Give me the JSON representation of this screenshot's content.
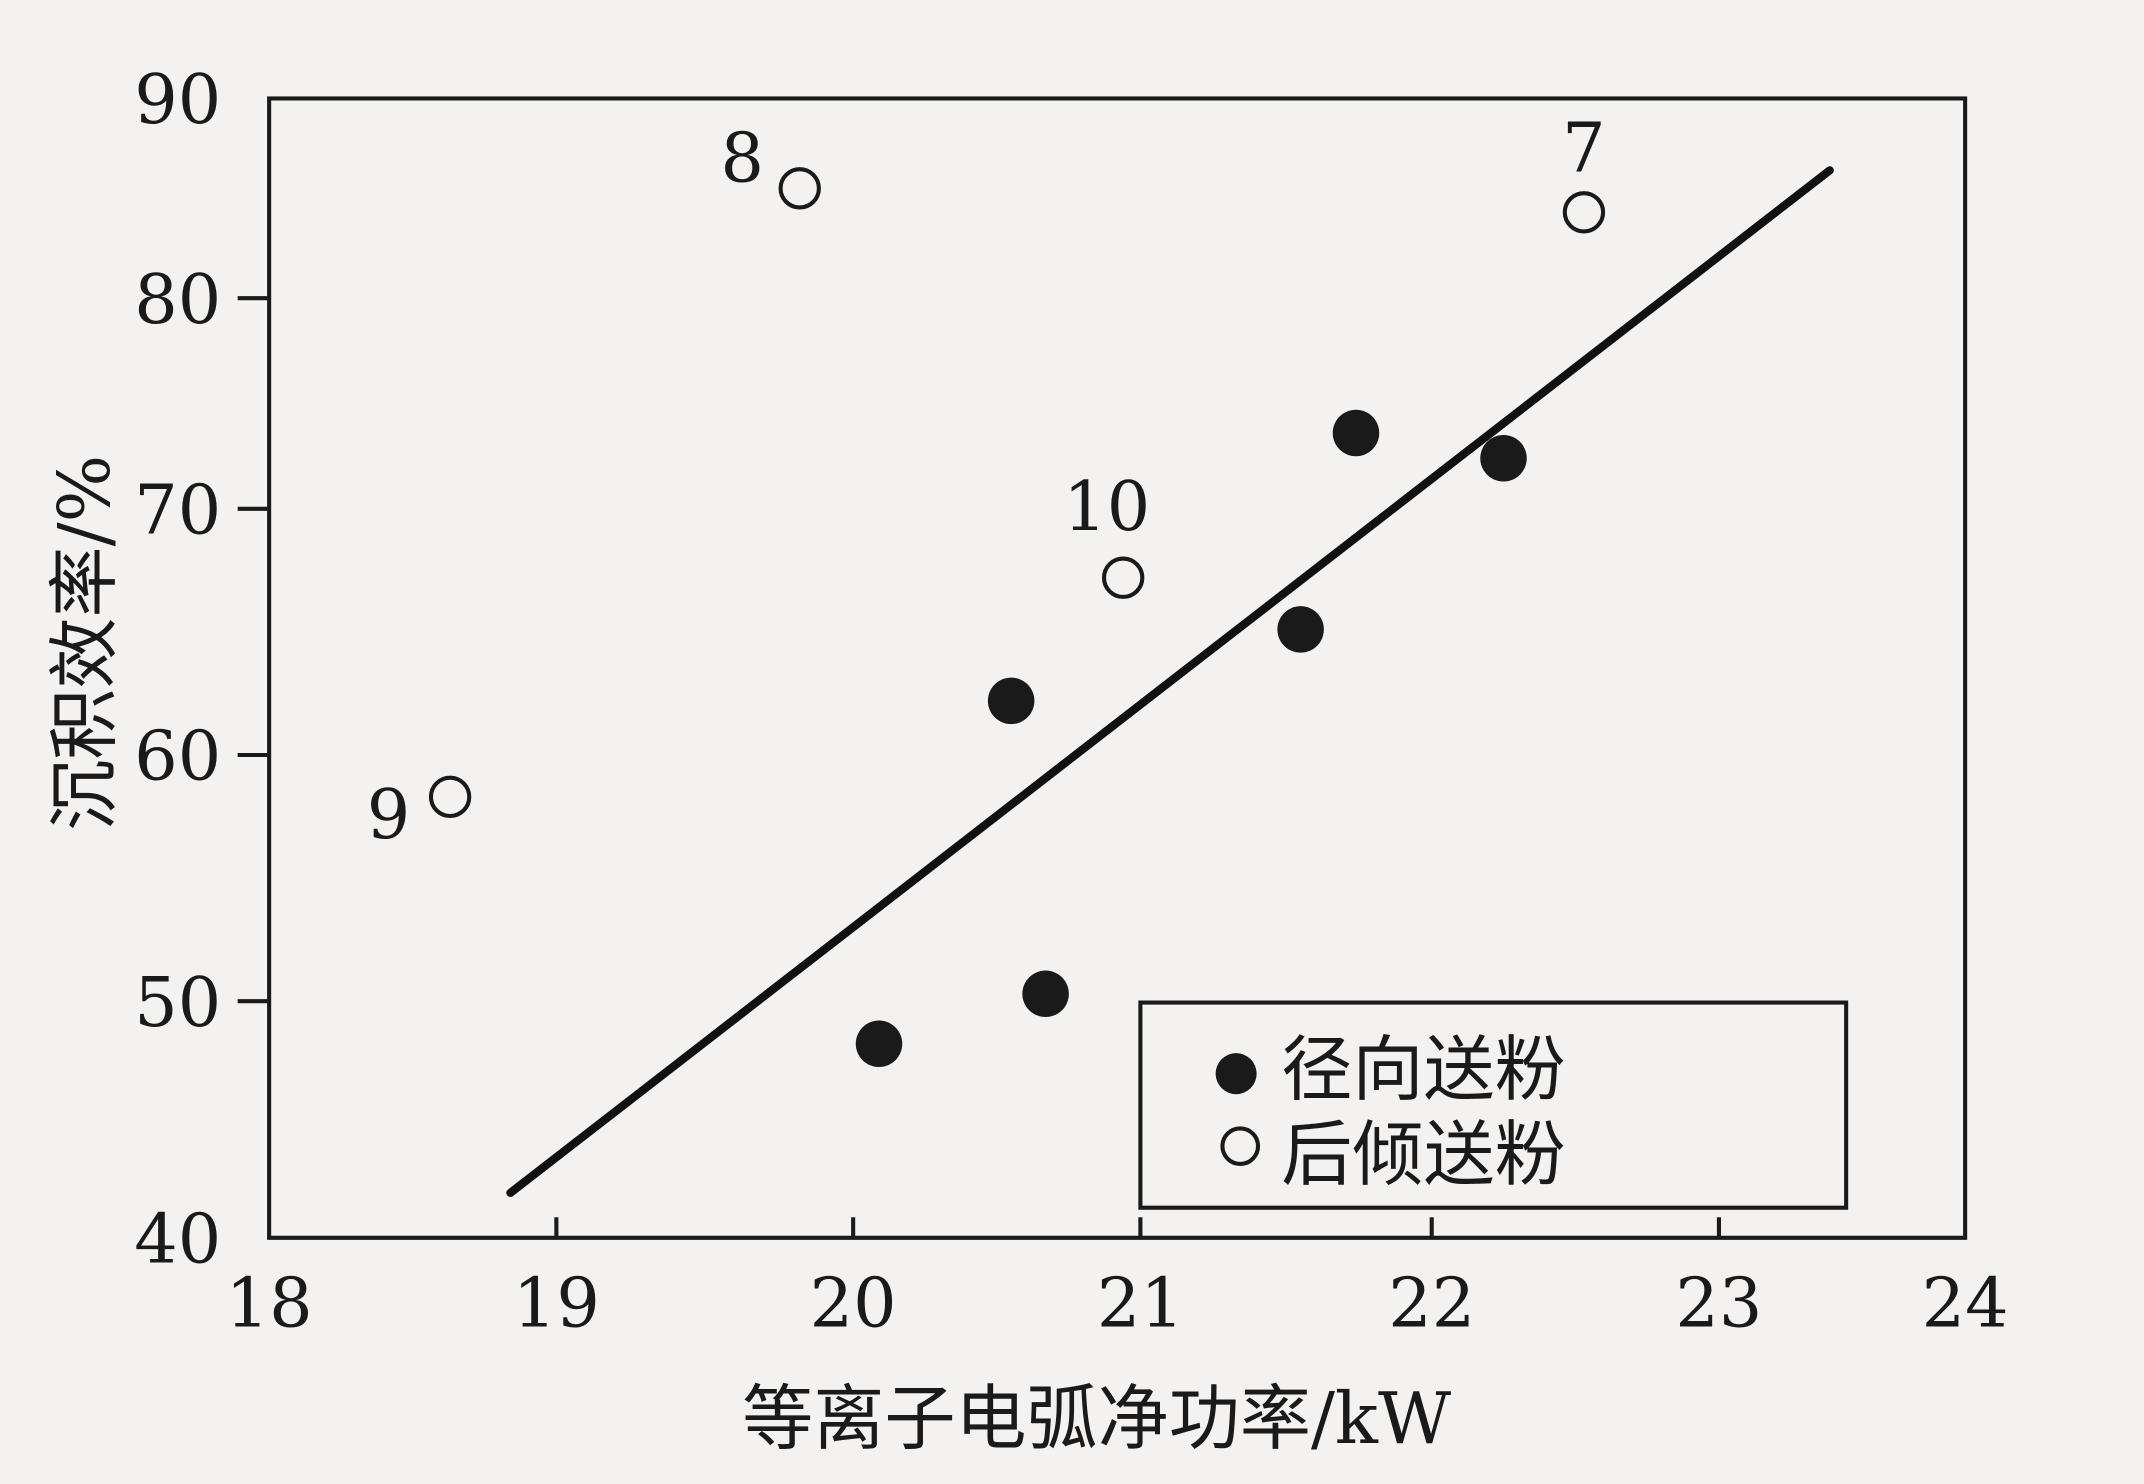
{
  "chart_data": {
    "type": "scatter",
    "xlabel": "等离子电弧净功率/kW",
    "ylabel": "沉积效率/%",
    "xlim": [
      18,
      24
    ],
    "ylim": [
      40,
      90
    ],
    "xticks": [
      "18",
      "19",
      "20",
      "21",
      "22",
      "23",
      "24"
    ],
    "yticks": [
      "40",
      "50",
      "60",
      "70",
      "80",
      "90"
    ],
    "grid": false,
    "legend_position": "bottom-right",
    "series": [
      {
        "name": "径向送粉",
        "marker": "filled-circle",
        "color": "#1a1a1a",
        "points": [
          {
            "x": 20.09,
            "y": 48.2
          },
          {
            "x": 20.67,
            "y": 50.3
          },
          {
            "x": 20.55,
            "y": 62.2
          },
          {
            "x": 21.55,
            "y": 65.1
          },
          {
            "x": 21.74,
            "y": 73.6
          },
          {
            "x": 22.25,
            "y": 72.4
          }
        ]
      },
      {
        "name": "后倾送粉",
        "marker": "open-circle",
        "color": "#1a1a1a",
        "points": [
          {
            "x": 18.63,
            "y": 58.3,
            "label": "9"
          },
          {
            "x": 19.82,
            "y": 85.5,
            "label": "8"
          },
          {
            "x": 20.94,
            "y": 67.2,
            "label": "10"
          },
          {
            "x": 22.53,
            "y": 84.3,
            "label": "7"
          }
        ]
      }
    ],
    "fit_line": {
      "x": [
        18.84,
        23.45
      ],
      "y": [
        41.9,
        86.4
      ]
    }
  }
}
